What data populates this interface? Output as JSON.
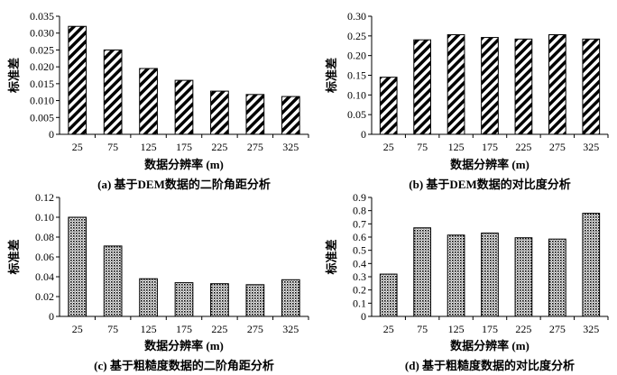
{
  "chart_data": [
    {
      "type": "bar",
      "categories": [
        "25",
        "75",
        "125",
        "175",
        "225",
        "275",
        "325"
      ],
      "values": [
        0.032,
        0.025,
        0.0195,
        0.016,
        0.0128,
        0.0118,
        0.0112
      ],
      "ylim": [
        0,
        0.035
      ],
      "yticks": [
        "0",
        "0.005",
        "0.010",
        "0.015",
        "0.020",
        "0.025",
        "0.030",
        "0.035"
      ],
      "ylabel": "标准差",
      "xlabel": "数据分辨率 (m)",
      "caption": "(a) 基于DEM数据的二阶角距分析",
      "pattern": "diagonal-stripes"
    },
    {
      "type": "bar",
      "categories": [
        "25",
        "75",
        "125",
        "175",
        "225",
        "275",
        "325"
      ],
      "values": [
        0.145,
        0.24,
        0.253,
        0.246,
        0.242,
        0.253,
        0.242
      ],
      "ylim": [
        0,
        0.3
      ],
      "yticks": [
        "0",
        "0.05",
        "0.10",
        "0.15",
        "0.20",
        "0.25",
        "0.30"
      ],
      "ylabel": "标准差",
      "xlabel": "数据分辨率 (m)",
      "caption": "(b) 基于DEM数据的对比度分析",
      "pattern": "diagonal-stripes"
    },
    {
      "type": "bar",
      "categories": [
        "25",
        "75",
        "125",
        "175",
        "225",
        "275",
        "325"
      ],
      "values": [
        0.1,
        0.071,
        0.038,
        0.034,
        0.033,
        0.032,
        0.037
      ],
      "ylim": [
        0,
        0.12
      ],
      "yticks": [
        "0",
        "0.02",
        "0.04",
        "0.06",
        "0.08",
        "0.10",
        "0.12"
      ],
      "ylabel": "标准差",
      "xlabel": "数据分辨率 (m)",
      "caption": "(c) 基于粗糙度数据的二阶角距分析",
      "pattern": "dotted"
    },
    {
      "type": "bar",
      "categories": [
        "25",
        "75",
        "125",
        "175",
        "225",
        "275",
        "325"
      ],
      "values": [
        0.32,
        0.67,
        0.615,
        0.63,
        0.595,
        0.585,
        0.78
      ],
      "ylim": [
        0,
        0.9
      ],
      "yticks": [
        "0",
        "0.1",
        "0.2",
        "0.3",
        "0.4",
        "0.5",
        "0.6",
        "0.7",
        "0.8",
        "0.9"
      ],
      "ylabel": "标准差",
      "xlabel": "数据分辨率 (m)",
      "caption": "(d) 基于粗糙度数据的对比度分析",
      "pattern": "dotted"
    }
  ]
}
